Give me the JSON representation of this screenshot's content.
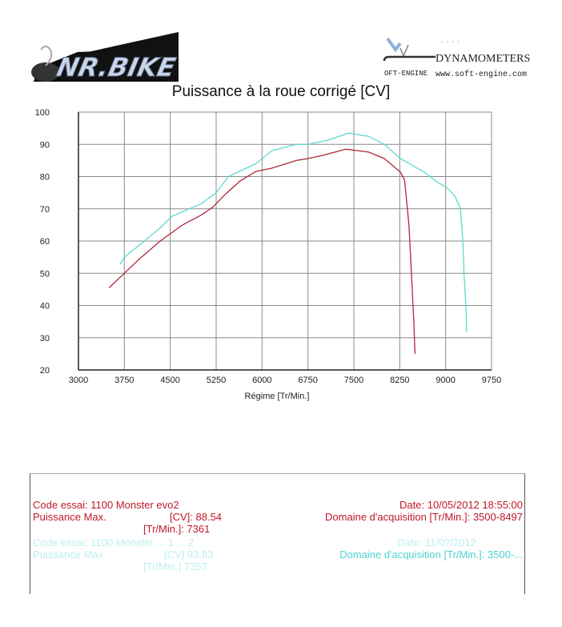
{
  "header": {
    "logo_left_text": "NR.BIKE",
    "logo_right_brand": "DYNAMOMETERS",
    "logo_right_sub": "OFT-ENGINE",
    "logo_right_url": "www.soft-engine.com"
  },
  "chart_data": {
    "type": "line",
    "title": "Puissance à la roue corrigé [CV]",
    "xlabel": "Régime [Tr/Min.]",
    "ylabel": "",
    "xlim": [
      3000,
      9750
    ],
    "ylim": [
      20,
      100
    ],
    "x_ticks": [
      3000,
      3750,
      4500,
      5250,
      6000,
      6750,
      7500,
      8250,
      9000,
      9750
    ],
    "y_ticks": [
      20,
      30,
      40,
      50,
      60,
      70,
      80,
      90,
      100
    ],
    "grid": true,
    "legend_position": "below chart (info box)",
    "series": [
      {
        "name": "1100 Monster evo2 (10/05/2012)",
        "color": "#b0283a",
        "x": [
          3500,
          3750,
          4000,
          4335,
          4700,
          5000,
          5190,
          5400,
          5640,
          5900,
          6160,
          6560,
          6750,
          7000,
          7370,
          7740,
          8000,
          8260,
          8330,
          8400,
          8440,
          8480,
          8500
        ],
        "y": [
          45.5,
          50,
          54.5,
          60,
          65,
          68,
          70.4,
          74.5,
          78.6,
          81.6,
          82.6,
          85,
          85.6,
          86.6,
          88.5,
          87.6,
          85.6,
          81.4,
          78.9,
          65,
          50,
          35,
          25
        ]
      },
      {
        "name": "1100 Monster (11/0?/2012)",
        "color": "#5fd8d0",
        "x": [
          3680,
          3750,
          4000,
          4330,
          4530,
          5000,
          5250,
          5450,
          5900,
          6160,
          6560,
          6750,
          7080,
          7410,
          7740,
          8000,
          8260,
          8650,
          8850,
          9020,
          9150,
          9240,
          9280,
          9300,
          9330,
          9345
        ],
        "y": [
          52.8,
          55,
          58.8,
          64,
          67.7,
          71.5,
          75,
          80,
          84,
          88,
          90,
          90,
          91.3,
          93.5,
          92.5,
          90,
          85.6,
          81.4,
          78.4,
          76.6,
          74,
          70.2,
          60.2,
          50,
          40,
          31.7
        ]
      }
    ]
  },
  "legend": {
    "run1": {
      "code": "Code essai: 1100 Monster evo2",
      "power_label": "Puissance Max.",
      "power_unit": "[CV]: 88.54",
      "rpm_unit": "[Tr/Min.]: 7361",
      "date": "Date: 10/05/2012 18:55:00",
      "domain": "Domaine d'acquisition [Tr/Min.]: 3500-8497"
    },
    "run2": {
      "code": "Code essai: 1100 Monster ... 1 ... 2",
      "power_label": "Puissance Max",
      "power_unit": "[CV] 93.83",
      "rpm_unit": "[Tr/Min.] 7357",
      "date": "Date: 11/0?/2012",
      "domain": "Domaine d'acquisition [Tr/Min.]: 3500-..."
    }
  }
}
